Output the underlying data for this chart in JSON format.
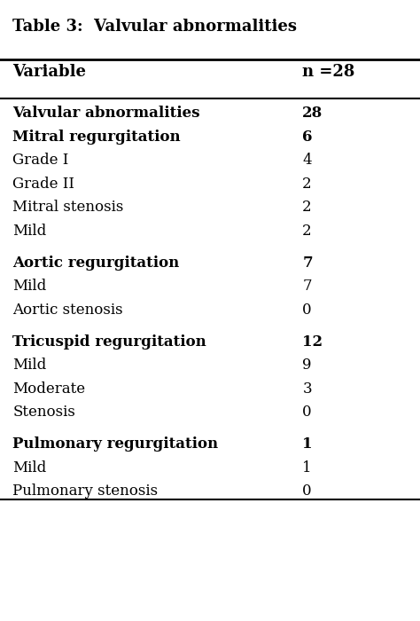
{
  "title": "Table 3:  Valvular abnormalities",
  "header": [
    "Variable",
    "n =28"
  ],
  "rows": [
    {
      "label": "Valvular abnormalities",
      "value": "28",
      "bold": true,
      "space_before": false
    },
    {
      "label": "Mitral regurgitation",
      "value": "6",
      "bold": true,
      "space_before": false
    },
    {
      "label": "Grade I",
      "value": "4",
      "bold": false,
      "space_before": false
    },
    {
      "label": "Grade II",
      "value": "2",
      "bold": false,
      "space_before": false
    },
    {
      "label": "Mitral stenosis",
      "value": "2",
      "bold": false,
      "space_before": false
    },
    {
      "label": "Mild",
      "value": "2",
      "bold": false,
      "space_before": false
    },
    {
      "label": "Aortic regurgitation",
      "value": "7",
      "bold": true,
      "space_before": true
    },
    {
      "label": "Mild",
      "value": "7",
      "bold": false,
      "space_before": false
    },
    {
      "label": "Aortic stenosis",
      "value": "0",
      "bold": false,
      "space_before": false
    },
    {
      "label": "Tricuspid regurgitation",
      "value": "12",
      "bold": true,
      "space_before": true
    },
    {
      "label": "Mild",
      "value": "9",
      "bold": false,
      "space_before": false
    },
    {
      "label": "Moderate",
      "value": "3",
      "bold": false,
      "space_before": false
    },
    {
      "label": "Stenosis",
      "value": "0",
      "bold": false,
      "space_before": false
    },
    {
      "label": "Pulmonary regurgitation",
      "value": "1",
      "bold": true,
      "space_before": true
    },
    {
      "label": "Mild",
      "value": "1",
      "bold": false,
      "space_before": false
    },
    {
      "label": "Pulmonary stenosis",
      "value": "0",
      "bold": false,
      "space_before": false
    }
  ],
  "bg_color": "#ffffff",
  "text_color": "#000000",
  "title_fontsize": 13,
  "header_fontsize": 13,
  "row_fontsize": 12,
  "fig_width": 4.74,
  "fig_height": 7.0,
  "dpi": 100
}
